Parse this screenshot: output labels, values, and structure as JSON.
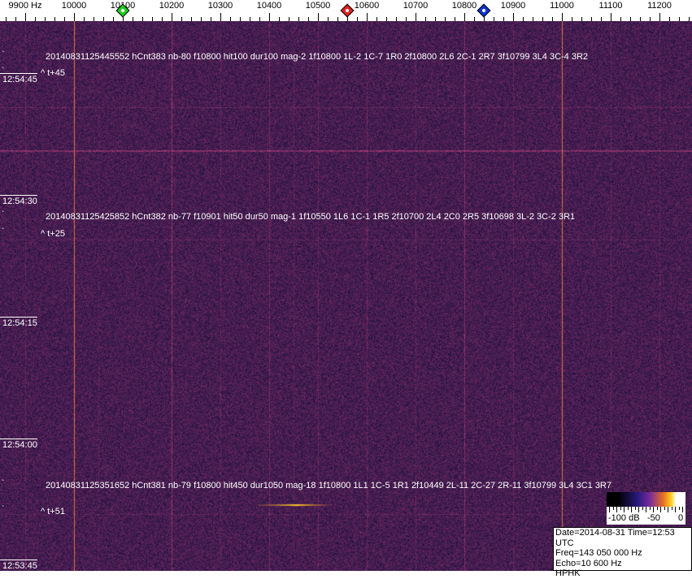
{
  "freq_scale": {
    "unit_label": "9900 Hz",
    "ticks": [
      "10000",
      "10100",
      "10200",
      "10300",
      "10400",
      "10500",
      "10600",
      "10700",
      "10800",
      "10900",
      "11000",
      "11100",
      "11200"
    ],
    "markers": [
      {
        "name": "green",
        "freq_hz": 10100,
        "color": "#22cc22"
      },
      {
        "name": "red",
        "freq_hz": 10560,
        "color": "#dd2222"
      },
      {
        "name": "blue",
        "freq_hz": 10840,
        "color": "#1133cc"
      }
    ]
  },
  "time_labels": [
    "12:54:45",
    "12:54:30",
    "12:54:15",
    "12:54:00",
    "12:53:45"
  ],
  "detections": [
    {
      "text": "20140831125445552 hCnt383 nb-80 f10800 hit100 dur100 mag-2 1f10800 1L-2 1C-7 1R0 2f10800 2L6 2C-1 2R7 3f10799 3L4 3C-4 3R2",
      "offset": "^ t+45"
    },
    {
      "text": "20140831125425852 hCnt382 nb-77 f10901 hit50 dur50 mag-1 1f10550 1L6 1C-1 1R5 2f10700 2L4 2C0 2R5 3f10698 3L-2 3C-2 3R1",
      "offset": "^ t+25"
    },
    {
      "text": "20140831125351652 hCnt381 nb-79 f10800 hit450 dur1050 mag-18 1f10800 1L1 1C-5 1R1 2f10449 2L-11 2C-27 2R-11 3f10799 3L4 3C1 3R7",
      "offset": "^ t+51"
    }
  ],
  "colorbar": {
    "labels": [
      "-100 dB",
      "-50",
      "0"
    ]
  },
  "info": {
    "date_time": "Date=2014-08-31 Time=12:53 UTC",
    "freq": "Freq=143 050 000 Hz",
    "echo": "Echo=10 600 Hz",
    "station": "HPHK"
  },
  "colors": {
    "background": "#1c1858",
    "carrier": "#e8783a",
    "accent": "#ffd020"
  }
}
